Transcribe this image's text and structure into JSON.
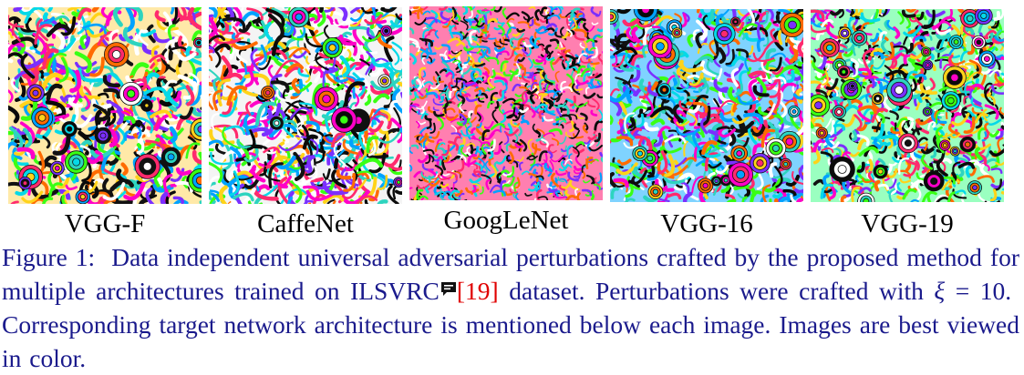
{
  "figure": {
    "panels": [
      {
        "label": "VGG-F",
        "pattern": "mosaic-rings"
      },
      {
        "label": "CaffeNet",
        "pattern": "swirl-stripes"
      },
      {
        "label": "GoogLeNet",
        "pattern": "fine-squiggles"
      },
      {
        "label": "VGG-16",
        "pattern": "eye-motifs"
      },
      {
        "label": "VGG-19",
        "pattern": "eye-motifs-dense"
      }
    ],
    "caption": {
      "prefix": "Figure 1:",
      "text_part1": "Data independent universal adversarial perturbations crafted by the proposed method for multiple architectures trained on ILSVRC",
      "citation": "[19]",
      "text_part2": "dataset. Perturbations were crafted with",
      "xi_symbol": "ξ",
      "xi_value": "= 10.",
      "text_part3": "Corresponding target network architecture is mentioned below each image. Images are best viewed in color."
    },
    "colors": {
      "caption_text": "#1a1a8c",
      "citation": "#e00000"
    },
    "comment_marker": "comment-icon"
  }
}
